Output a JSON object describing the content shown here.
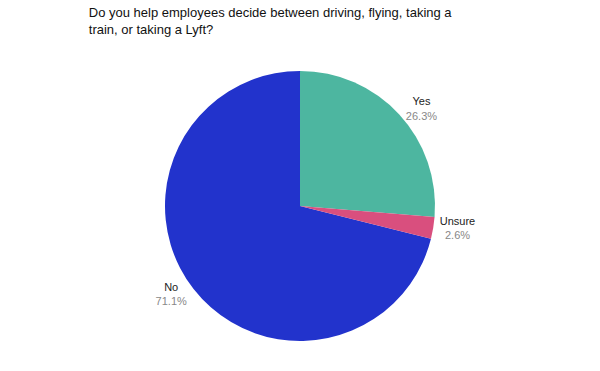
{
  "chart_data": {
    "type": "pie",
    "title": "Do you help employees decide between driving, flying, taking a\ntrain, or taking a Lyft?",
    "categories": [
      "Yes",
      "No",
      "Unsure"
    ],
    "values": [
      26.3,
      71.1,
      2.6
    ],
    "value_labels": [
      "26.3%",
      "71.1%",
      "2.6%"
    ],
    "colors": [
      "#4db6a0",
      "#2233cc",
      "#d94f7e"
    ],
    "data_labels": true
  }
}
